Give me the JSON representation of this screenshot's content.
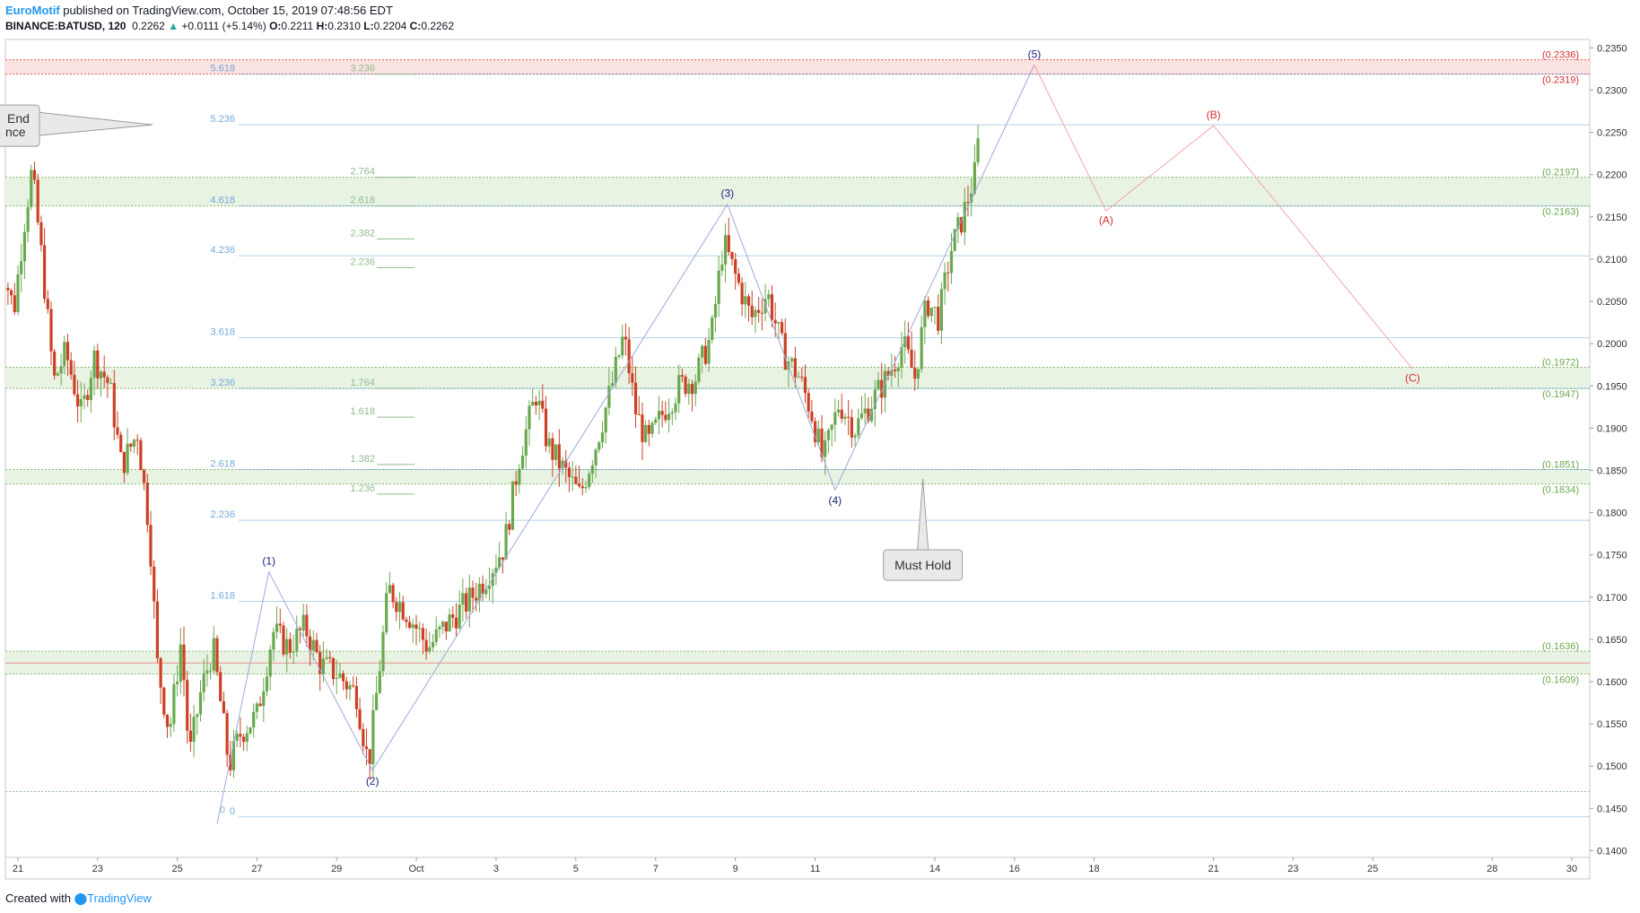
{
  "header": {
    "author": "EuroMotif",
    "published": "published on TradingView.com, October 15, 2019 07:48:56 EDT",
    "symbol": "BINANCE:BATUSD, 120",
    "last": "0.2262",
    "change": "+0.0111 (+5.14%)",
    "o_label": "O:",
    "o": "0.2211",
    "h_label": "H:",
    "h": "0.2310",
    "l_label": "L:",
    "l": "0.2204",
    "c_label": "C:",
    "c": "0.2262"
  },
  "footer": {
    "created": "Created with",
    "brand": "TradingView"
  },
  "colors": {
    "up": "#26a69a",
    "down": "#ef5350",
    "candle_up": "#6aa84f",
    "candle_down": "#cc4125",
    "blue_fib": "#5b9bd5",
    "green_fib": "#8fbc8f",
    "zone_green": "#e8f3e4",
    "zone_red": "#fbe3e1",
    "wave_blue": "#1a237e",
    "wave_red": "#d32f2f"
  },
  "chart_data": {
    "type": "candlestick",
    "ylim": [
      0.1392,
      0.236
    ],
    "y_ticks": [
      "0.2350",
      "0.2300",
      "0.2250",
      "0.2200",
      "0.2150",
      "0.2100",
      "0.2050",
      "0.2000",
      "0.1950",
      "0.1900",
      "0.1850",
      "0.1800",
      "0.1750",
      "0.1700",
      "0.1650",
      "0.1600",
      "0.1550",
      "0.1500",
      "0.1450",
      "0.1400"
    ],
    "x_range_days": [
      20.75,
      30.4
    ],
    "x_ticks": [
      {
        "label": "21",
        "day": 21
      },
      {
        "label": "23",
        "day": 23
      },
      {
        "label": "25",
        "day": 25
      },
      {
        "label": "27",
        "day": 27
      },
      {
        "label": "29",
        "day": 29
      },
      {
        "label": "Oct",
        "day": 31
      },
      {
        "label": "3",
        "day": 33
      },
      {
        "label": "5",
        "day": 35
      },
      {
        "label": "7",
        "day": 37
      },
      {
        "label": "9",
        "day": 39
      },
      {
        "label": "11",
        "day": 41
      },
      {
        "label": "14",
        "day": 44
      },
      {
        "label": "16",
        "day": 46
      },
      {
        "label": "18",
        "day": 48
      },
      {
        "label": "21",
        "day": 51
      },
      {
        "label": "23",
        "day": 53
      },
      {
        "label": "25",
        "day": 55
      },
      {
        "label": "28",
        "day": 58
      },
      {
        "label": "30",
        "day": 60
      }
    ],
    "price_path": [
      [
        20.5,
        0.211
      ],
      [
        20.9,
        0.204
      ],
      [
        21.15,
        0.214
      ],
      [
        21.35,
        0.2205
      ],
      [
        21.6,
        0.21
      ],
      [
        21.9,
        0.1955
      ],
      [
        22.2,
        0.199
      ],
      [
        22.6,
        0.1915
      ],
      [
        22.9,
        0.1985
      ],
      [
        23.3,
        0.195
      ],
      [
        23.6,
        0.1855
      ],
      [
        24.0,
        0.1895
      ],
      [
        24.3,
        0.178
      ],
      [
        24.5,
        0.162
      ],
      [
        24.8,
        0.154
      ],
      [
        25.1,
        0.165
      ],
      [
        25.3,
        0.151
      ],
      [
        25.6,
        0.159
      ],
      [
        25.9,
        0.164
      ],
      [
        26.3,
        0.15
      ],
      [
        26.6,
        0.154
      ],
      [
        27.0,
        0.156
      ],
      [
        27.4,
        0.166
      ],
      [
        27.8,
        0.164
      ],
      [
        28.2,
        0.1665
      ],
      [
        28.6,
        0.162
      ],
      [
        29.0,
        0.161
      ],
      [
        29.5,
        0.1585
      ],
      [
        29.8,
        0.15
      ],
      [
        30.3,
        0.171
      ],
      [
        30.8,
        0.168
      ],
      [
        31.3,
        0.164
      ],
      [
        31.8,
        0.167
      ],
      [
        32.3,
        0.1695
      ],
      [
        32.7,
        0.172
      ],
      [
        33.2,
        0.176
      ],
      [
        33.6,
        0.187
      ],
      [
        34.0,
        0.194
      ],
      [
        34.3,
        0.188
      ],
      [
        34.7,
        0.185
      ],
      [
        35.1,
        0.182
      ],
      [
        35.5,
        0.188
      ],
      [
        35.9,
        0.195
      ],
      [
        36.2,
        0.201
      ],
      [
        36.5,
        0.192
      ],
      [
        36.8,
        0.188
      ],
      [
        37.2,
        0.192
      ],
      [
        37.6,
        0.195
      ],
      [
        38.0,
        0.196
      ],
      [
        38.4,
        0.201
      ],
      [
        38.7,
        0.212
      ],
      [
        39.0,
        0.208
      ],
      [
        39.4,
        0.203
      ],
      [
        39.8,
        0.206
      ],
      [
        40.2,
        0.199
      ],
      [
        40.6,
        0.196
      ],
      [
        40.9,
        0.192
      ],
      [
        41.2,
        0.186
      ],
      [
        41.6,
        0.193
      ],
      [
        42.0,
        0.19
      ],
      [
        42.4,
        0.193
      ],
      [
        42.8,
        0.196
      ],
      [
        43.2,
        0.2
      ],
      [
        43.5,
        0.196
      ],
      [
        43.8,
        0.205
      ],
      [
        44.1,
        0.203
      ],
      [
        44.4,
        0.211
      ],
      [
        44.7,
        0.215
      ],
      [
        45.0,
        0.22
      ],
      [
        45.15,
        0.2262
      ]
    ],
    "support_resistance": [
      {
        "label": "(0.2336)",
        "value": 0.2336,
        "color": "#d32f2f"
      },
      {
        "label": "(0.2319)",
        "value": 0.2319,
        "color": "#d32f2f"
      },
      {
        "label": "(0.2197)",
        "value": 0.2197,
        "color": "#6aa84f"
      },
      {
        "label": "(0.2163)",
        "value": 0.2163,
        "color": "#6aa84f"
      },
      {
        "label": "(0.1972)",
        "value": 0.1972,
        "color": "#6aa84f"
      },
      {
        "label": "(0.1947)",
        "value": 0.1947,
        "color": "#6aa84f"
      },
      {
        "label": "(0.1851)",
        "value": 0.1851,
        "color": "#6aa84f"
      },
      {
        "label": "(0.1834)",
        "value": 0.1834,
        "color": "#6aa84f"
      },
      {
        "label": "(0.1636)",
        "value": 0.1636,
        "color": "#6aa84f"
      },
      {
        "label": "(0.1609)",
        "value": 0.1609,
        "color": "#6aa84f"
      }
    ],
    "fib_blue": [
      {
        "label": "5.618",
        "value": 0.2319
      },
      {
        "label": "5.236",
        "value": 0.2259
      },
      {
        "label": "4.618",
        "value": 0.2163
      },
      {
        "label": "4.236",
        "value": 0.2104
      },
      {
        "label": "3.618",
        "value": 0.2007
      },
      {
        "label": "3.236",
        "value": 0.1947
      },
      {
        "label": "2.618",
        "value": 0.1851
      },
      {
        "label": "2.236",
        "value": 0.1791
      },
      {
        "label": "1.618",
        "value": 0.1695
      },
      {
        "label": "0",
        "value": 0.144
      }
    ],
    "fib_green": [
      {
        "label": "3.236",
        "value": 0.2319
      },
      {
        "label": "2.764",
        "value": 0.2197
      },
      {
        "label": "2.618",
        "value": 0.2163
      },
      {
        "label": "2.382",
        "value": 0.2124
      },
      {
        "label": "2.236",
        "value": 0.209
      },
      {
        "label": "1.764",
        "value": 0.1947
      },
      {
        "label": "1.618",
        "value": 0.1913
      },
      {
        "label": "1.382",
        "value": 0.1857
      },
      {
        "label": "1.236",
        "value": 0.1822
      }
    ],
    "waves_blue": [
      {
        "label": "(1)",
        "day": 27.3,
        "value": 0.173
      },
      {
        "label": "(2)",
        "day": 29.9,
        "value": 0.1495
      },
      {
        "label": "(3)",
        "day": 38.8,
        "value": 0.2165
      },
      {
        "label": "(4)",
        "day": 41.5,
        "value": 0.1827
      },
      {
        "label": "(5)",
        "day": 46.5,
        "value": 0.233
      }
    ],
    "wave_start": {
      "label": "0",
      "day": 26.0,
      "value": 0.1432
    },
    "waves_red": [
      {
        "label": "(A)",
        "day": 48.3,
        "value": 0.2157
      },
      {
        "label": "(B)",
        "day": 51.0,
        "value": 0.2258
      },
      {
        "label": "(C)",
        "day": 56.0,
        "value": 0.197
      }
    ],
    "callouts": [
      {
        "label": "Must Hold",
        "day": 43.7,
        "value": 0.1737
      },
      {
        "label_line1": "End",
        "label_line2": "nce",
        "day": 20.8,
        "value": 0.2259
      }
    ]
  }
}
